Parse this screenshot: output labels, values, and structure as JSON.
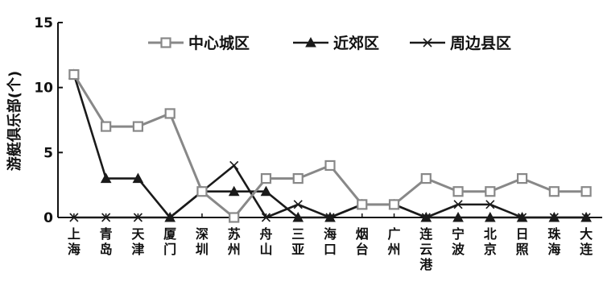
{
  "chart_data": {
    "type": "line",
    "title": "",
    "xlabel": "",
    "ylabel": "游艇俱乐部(个)",
    "ylim": [
      0,
      15
    ],
    "yticks": [
      0,
      5,
      10,
      15
    ],
    "grid": false,
    "legend_position": "top-right",
    "categories": [
      "上海",
      "青岛",
      "天津",
      "厦门",
      "深圳",
      "苏州",
      "舟山",
      "三亚",
      "海口",
      "烟台",
      "广州",
      "连云港",
      "宁波",
      "北京",
      "日照",
      "珠海",
      "大连"
    ],
    "series": [
      {
        "name": "中心城区",
        "marker": "square",
        "color": "#888888",
        "values": [
          11,
          7,
          7,
          8,
          2,
          0,
          3,
          3,
          4,
          1,
          1,
          3,
          2,
          2,
          3,
          2,
          2
        ]
      },
      {
        "name": "近郊区",
        "marker": "triangle",
        "color": "#1a1a1a",
        "values": [
          11,
          3,
          3,
          0,
          2,
          2,
          2,
          0,
          0,
          1,
          1,
          0,
          0,
          0,
          0,
          0,
          0
        ]
      },
      {
        "name": "周边县区",
        "marker": "x",
        "color": "#1a1a1a",
        "values": [
          0,
          0,
          0,
          0,
          2,
          4,
          0,
          1,
          0,
          1,
          1,
          0,
          1,
          1,
          0,
          0,
          0
        ]
      }
    ]
  }
}
